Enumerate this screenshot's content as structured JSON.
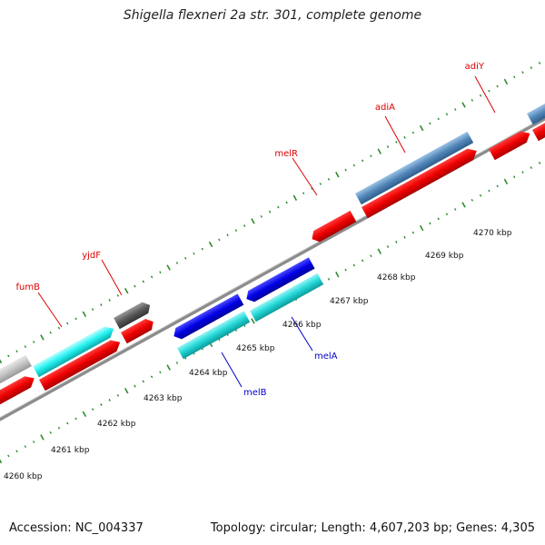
{
  "title": "Shigella flexneri 2a str. 301, complete genome",
  "footer": {
    "accession": "Accession: NC_004337",
    "summary": "Topology: circular; Length: 4,607,203 bp; Genes: 4,305"
  },
  "colors": {
    "backbone": "#8c8c8c",
    "ticks": "#2e8b2e",
    "red_label": "#dd0000",
    "blue_label": "#0000cc"
  },
  "scale_labels": [
    "4260 kbp",
    "4261 kbp",
    "4262 kbp",
    "4263 kbp",
    "4264 kbp",
    "4265 kbp",
    "4266 kbp",
    "4267 kbp",
    "4268 kbp",
    "4269 kbp",
    "4270 kbp"
  ],
  "gene_labels": [
    {
      "name": "fumB",
      "color": "red"
    },
    {
      "name": "yjdF",
      "color": "red"
    },
    {
      "name": "melR",
      "color": "red"
    },
    {
      "name": "adiA",
      "color": "red"
    },
    {
      "name": "adiY",
      "color": "red"
    },
    {
      "name": "melB",
      "color": "blue"
    },
    {
      "name": "melA",
      "color": "blue"
    }
  ]
}
